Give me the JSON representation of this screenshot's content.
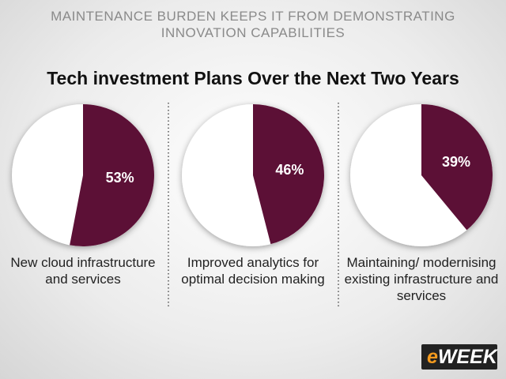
{
  "header": "MAINTENANCE BURDEN KEEPS IT FROM DEMONSTRATING INNOVATION CAPABILITIES",
  "title": "Tech investment Plans Over the Next Two Years",
  "logo_prefix": "e",
  "logo": "WEEK",
  "chart_data": [
    {
      "type": "pie",
      "categories": [
        "New cloud infrastructure and services"
      ],
      "values": [
        53
      ],
      "value_labels": [
        "53%"
      ],
      "colors": [
        "#5c1036"
      ]
    },
    {
      "type": "pie",
      "categories": [
        "Improved analytics for optimal decision making"
      ],
      "values": [
        46
      ],
      "value_labels": [
        "46%"
      ],
      "colors": [
        "#5c1036"
      ]
    },
    {
      "type": "pie",
      "categories": [
        "Maintaining/ modernising existing infrastructure and services"
      ],
      "values": [
        39
      ],
      "value_labels": [
        "39%"
      ],
      "colors": [
        "#5c1036"
      ]
    }
  ]
}
